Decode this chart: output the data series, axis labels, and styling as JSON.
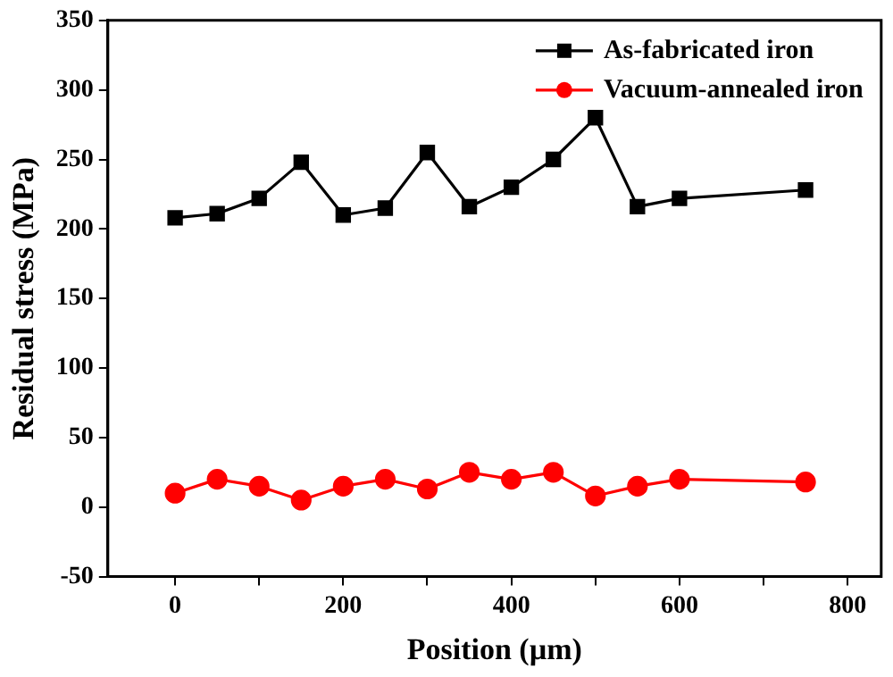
{
  "chart_data": {
    "type": "line",
    "xlabel": "Position (µm)",
    "ylabel": "Residual stress (MPa)",
    "x": [
      0,
      50,
      100,
      150,
      200,
      250,
      300,
      350,
      400,
      450,
      500,
      550,
      600,
      750
    ],
    "series": [
      {
        "name": "As-fabricated iron",
        "color": "#000000",
        "marker": "square",
        "values": [
          208,
          211,
          222,
          248,
          210,
          215,
          255,
          216,
          230,
          250,
          280,
          216,
          222,
          228
        ]
      },
      {
        "name": "Vacuum-annealed iron",
        "color": "#ff0000",
        "marker": "circle",
        "values": [
          10,
          20,
          15,
          5,
          15,
          20,
          13,
          25,
          20,
          25,
          8,
          15,
          20,
          18
        ]
      }
    ],
    "xlim": [
      -80,
      840
    ],
    "xticks": [
      0,
      {
        "value": 100,
        "label": null
      },
      200,
      {
        "value": 300,
        "label": null
      },
      400,
      {
        "value": 500,
        "label": null
      },
      600,
      {
        "value": 700,
        "label": null
      },
      800
    ],
    "ylim": [
      -50,
      350
    ],
    "yticks": [
      -50,
      0,
      50,
      100,
      150,
      200,
      250,
      300,
      350
    ],
    "legend": "top right",
    "grid": false,
    "line_style": "solid"
  }
}
